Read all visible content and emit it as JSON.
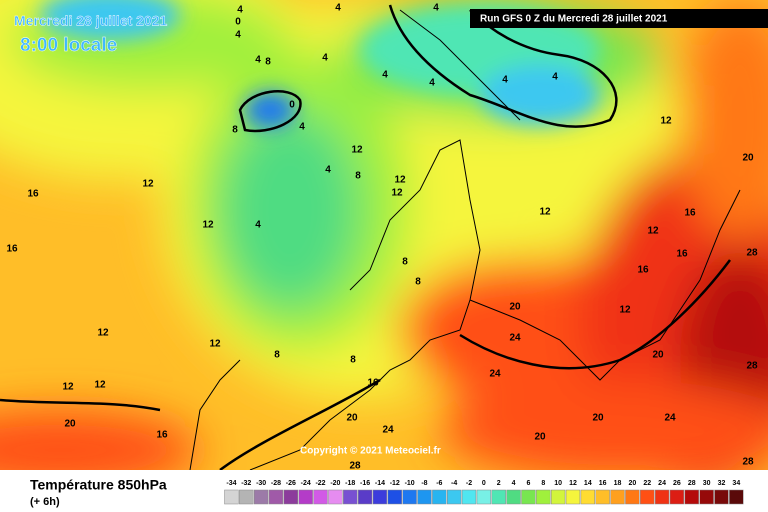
{
  "header": {
    "date": "Mercredi 28 juillet 2021",
    "time": "8:00 locale",
    "run": "Run GFS 0 Z du Mercredi 28 juillet 2021"
  },
  "map": {
    "copyright": "Copyright © 2021 Meteociel.fr",
    "contour_labels": [
      "4",
      "4",
      "4",
      "4",
      "4",
      "4",
      "4",
      "4",
      "4",
      "4",
      "4",
      "4",
      "4",
      "0",
      "0",
      "8",
      "8",
      "8",
      "8",
      "8",
      "8",
      "8",
      "12",
      "12",
      "12",
      "12",
      "12",
      "12",
      "12",
      "12",
      "12",
      "12",
      "12",
      "12",
      "12",
      "16",
      "16",
      "16",
      "16",
      "16",
      "16",
      "16",
      "20",
      "20",
      "20",
      "20",
      "20",
      "20",
      "20",
      "24",
      "24",
      "24",
      "24",
      "28",
      "28",
      "28",
      "28"
    ]
  },
  "footer": {
    "title": "Température 850hPa",
    "subtitle": "(+ 6h)",
    "scale": [
      {
        "label": "-34",
        "color": "#d4d4d4"
      },
      {
        "label": "-32",
        "color": "#b4b4b4"
      },
      {
        "label": "-30",
        "color": "#9c7aa8"
      },
      {
        "label": "-28",
        "color": "#a05aa8"
      },
      {
        "label": "-26",
        "color": "#8c3c9c"
      },
      {
        "label": "-24",
        "color": "#b43cc8"
      },
      {
        "label": "-22",
        "color": "#d25ae6"
      },
      {
        "label": "-20",
        "color": "#e68cf0"
      },
      {
        "label": "-18",
        "color": "#7850d2"
      },
      {
        "label": "-16",
        "color": "#5a3cc8"
      },
      {
        "label": "-14",
        "color": "#3c3cdc"
      },
      {
        "label": "-12",
        "color": "#1e50e6"
      },
      {
        "label": "-10",
        "color": "#1e78f0"
      },
      {
        "label": "-8",
        "color": "#1e96f0"
      },
      {
        "label": "-6",
        "color": "#28b4f0"
      },
      {
        "label": "-4",
        "color": "#3cc8f0"
      },
      {
        "label": "-2",
        "color": "#50e6f0"
      },
      {
        "label": "0",
        "color": "#78f0e6"
      },
      {
        "label": "2",
        "color": "#50e6b4"
      },
      {
        "label": "4",
        "color": "#50dc82"
      },
      {
        "label": "6",
        "color": "#78e650"
      },
      {
        "label": "8",
        "color": "#a0f03c"
      },
      {
        "label": "10",
        "color": "#d2f53c"
      },
      {
        "label": "12",
        "color": "#f5f53c"
      },
      {
        "label": "14",
        "color": "#ffdc32"
      },
      {
        "label": "16",
        "color": "#ffbe28"
      },
      {
        "label": "18",
        "color": "#ffa01e"
      },
      {
        "label": "20",
        "color": "#ff7814"
      },
      {
        "label": "22",
        "color": "#ff5014"
      },
      {
        "label": "24",
        "color": "#f03214"
      },
      {
        "label": "26",
        "color": "#dc1e14"
      },
      {
        "label": "28",
        "color": "#b40a0a"
      },
      {
        "label": "30",
        "color": "#960a0a"
      },
      {
        "label": "32",
        "color": "#780a0a"
      },
      {
        "label": "34",
        "color": "#5a0a0a"
      }
    ]
  }
}
